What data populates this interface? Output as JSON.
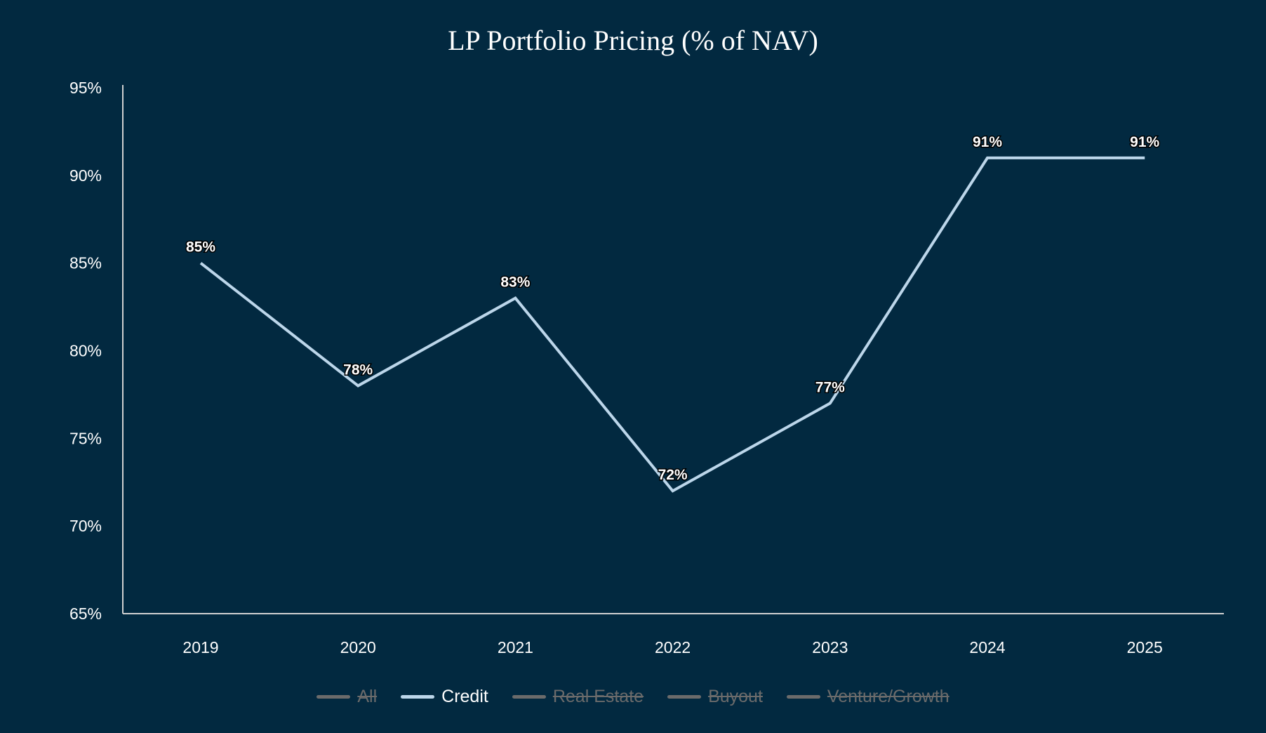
{
  "chart_data": {
    "type": "line",
    "title": "LP Portfolio Pricing (% of NAV)",
    "xlabel": "",
    "ylabel": "",
    "categories": [
      "2019",
      "2020",
      "2021",
      "2022",
      "2023",
      "2024",
      "2025"
    ],
    "ylim": [
      65,
      95
    ],
    "yticks": [
      65,
      70,
      75,
      80,
      85,
      90,
      95
    ],
    "ytick_labels": [
      "65%",
      "70%",
      "75%",
      "80%",
      "85%",
      "90%",
      "95%"
    ],
    "grid": false,
    "legend_position": "bottom",
    "series": [
      {
        "name": "Credit",
        "values": [
          85,
          78,
          83,
          72,
          77,
          91,
          91
        ],
        "labels": [
          "85%",
          "78%",
          "83%",
          "72%",
          "77%",
          "91%",
          "91%"
        ],
        "color": "#bcd6ea",
        "visible": true
      }
    ],
    "legend": [
      {
        "name": "All",
        "visible": false,
        "color": "#6b6b6b"
      },
      {
        "name": "Credit",
        "visible": true,
        "color": "#bcd6ea"
      },
      {
        "name": "Real Estate",
        "visible": false,
        "color": "#6b6b6b"
      },
      {
        "name": "Buyout",
        "visible": false,
        "color": "#6b6b6b"
      },
      {
        "name": "Venture/Growth",
        "visible": false,
        "color": "#6b6b6b"
      }
    ]
  }
}
